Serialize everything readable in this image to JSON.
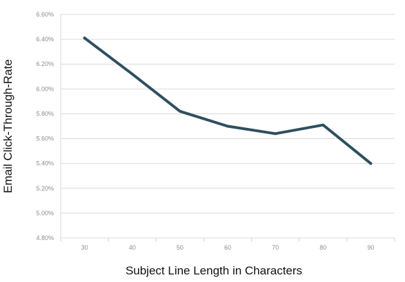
{
  "chart_data": {
    "type": "line",
    "title": "",
    "xlabel": "Subject Line Length in Characters",
    "ylabel": "Email Click-Through-Rate",
    "categories": [
      "30",
      "40",
      "50",
      "60",
      "70",
      "80",
      "90"
    ],
    "series": [
      {
        "values": [
          6.41,
          6.12,
          5.82,
          5.7,
          5.64,
          5.71,
          5.4
        ]
      }
    ],
    "y_ticks": [
      "4.80%",
      "5.00%",
      "5.20%",
      "5.40%",
      "5.60%",
      "5.80%",
      "6.00%",
      "6.20%",
      "6.40%",
      "6.60%"
    ],
    "ylim": [
      4.8,
      6.6
    ],
    "y_unit": "%",
    "grid": true,
    "legend": "none",
    "colors": {
      "line": "#2f4f5f",
      "grid": "#d9d9d9",
      "tick_text": "#8c8c8c",
      "axis_title": "#111111"
    }
  }
}
